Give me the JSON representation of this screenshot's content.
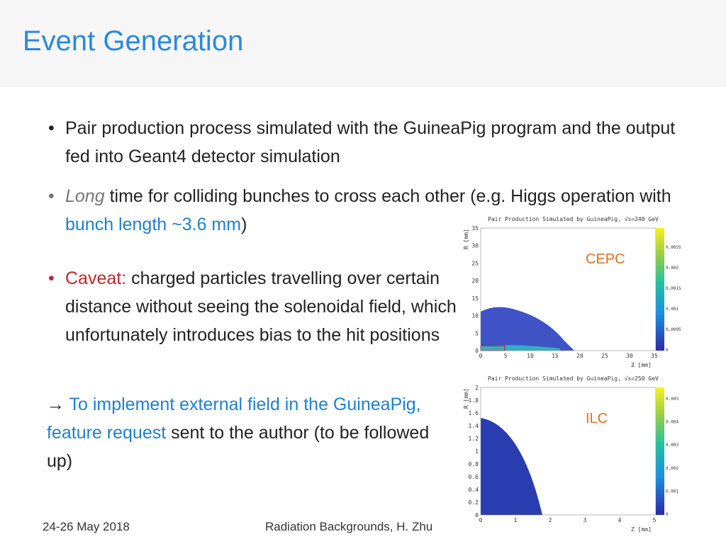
{
  "header": {
    "title": "Event Generation"
  },
  "bullets": [
    {
      "runs": [
        {
          "text": "Pair production process simulated with the GuineaPig program and the output fed into Geant4 detector simulation",
          "style": "normal"
        }
      ]
    },
    {
      "runs": [
        {
          "text": "Long",
          "style": "italic"
        },
        {
          "text": " time for colliding bunches to cross each other (e.g. Higgs operation with ",
          "style": "normal"
        },
        {
          "text": "bunch length ~3.6 mm",
          "style": "blue"
        },
        {
          "text": ")",
          "style": "normal"
        }
      ]
    },
    {
      "runs": [
        {
          "text": "Caveat:",
          "style": "red"
        },
        {
          "text": " charged particles travelling over certain distance without seeing the solenoidal field, which unfortunately introduces bias to the hit positions",
          "style": "normal"
        }
      ]
    }
  ],
  "note": {
    "runs": [
      {
        "text": "→  ",
        "style": "normal"
      },
      {
        "text": "To implement external field in the GuineaPig, feature request",
        "style": "blue"
      },
      {
        "text": " sent to the author (to be followed up)",
        "style": "normal"
      }
    ]
  },
  "plots": [
    {
      "title": "Pair Production Simulated by GuineaPig, √s=240 GeV",
      "label": "CEPC",
      "y_label": "R [mm]",
      "x_label": "Z [mm]",
      "xticks": [
        "0",
        "5",
        "10",
        "15",
        "20",
        "25",
        "30",
        "35"
      ],
      "yticks": [
        "0",
        "5",
        "10",
        "15",
        "20",
        "25",
        "30",
        "35"
      ],
      "zticks": [
        "0",
        "0.0005",
        "0.001",
        "0.0015",
        "0.002",
        "0.0025"
      ]
    },
    {
      "title": "Pair Production Simulated by GuineaPig, √s=250 GeV",
      "label": "ILC",
      "y_label": "R [mm]",
      "x_label": "Z [mm]",
      "xticks": [
        "0",
        "1",
        "2",
        "3",
        "4",
        "5"
      ],
      "yticks": [
        "0",
        "0.2",
        "0.4",
        "0.6",
        "0.8",
        "1",
        "1.2",
        "1.4",
        "1.6",
        "1.8",
        "2"
      ],
      "zticks": [
        "0",
        "0.001",
        "0.002",
        "0.003",
        "0.004",
        "0.005"
      ]
    }
  ],
  "footer": {
    "date": "24-26 May 2018",
    "center": "Radiation Backgrounds, H. Zhu"
  }
}
